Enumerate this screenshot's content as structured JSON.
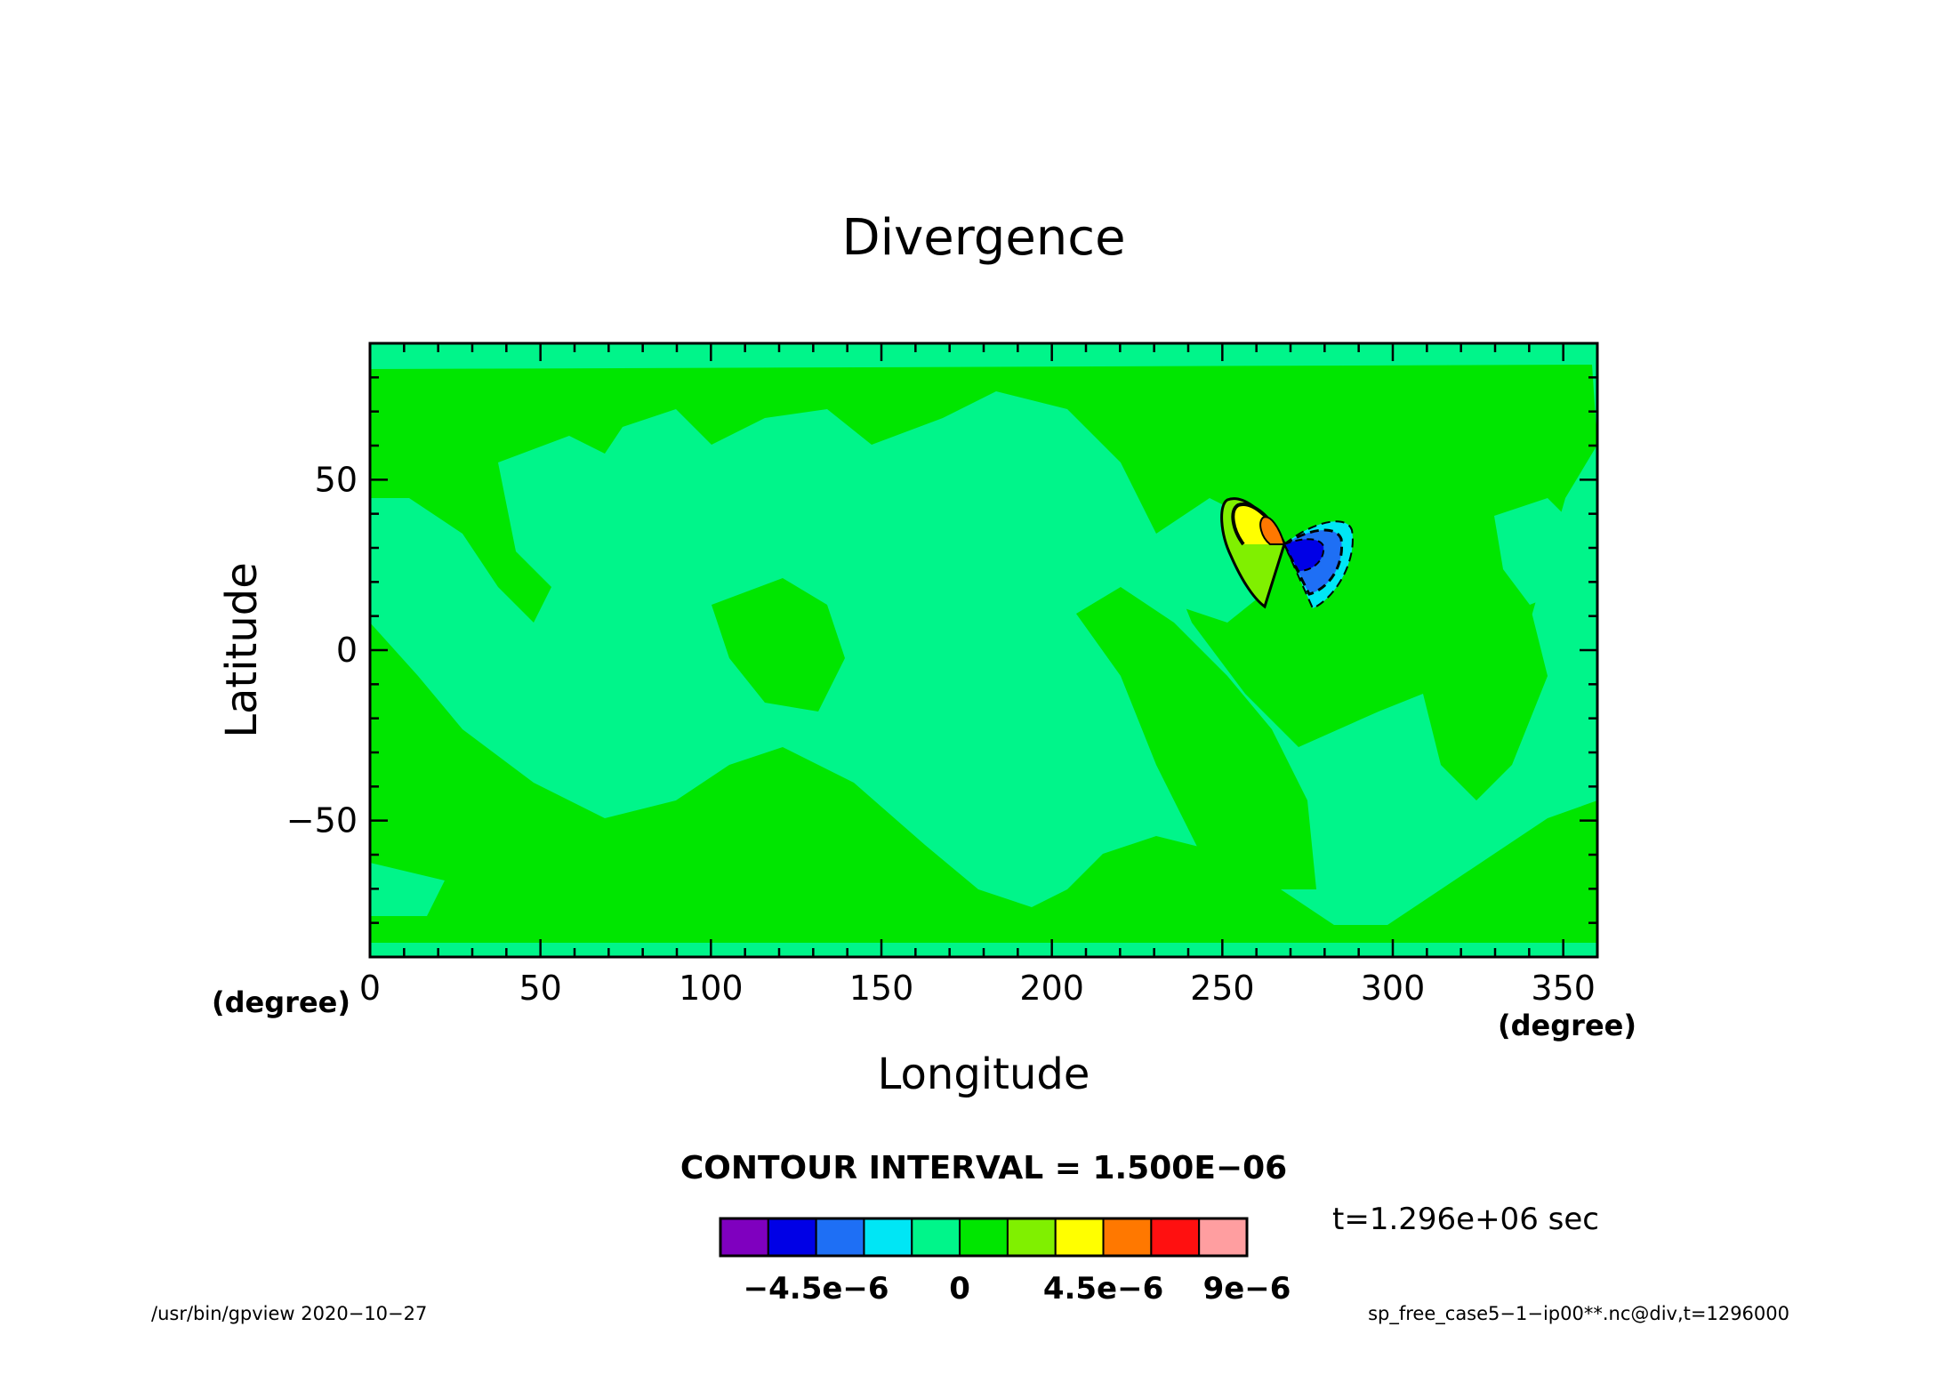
{
  "chart_data": {
    "type": "heatmap",
    "title": "Divergence",
    "xlabel": "Longitude",
    "ylabel": "Latitude",
    "x_unit": "(degree)",
    "y_unit": "(degree)",
    "xlim": [
      0,
      360
    ],
    "ylim": [
      -90,
      90
    ],
    "x_ticks": [
      0,
      50,
      100,
      150,
      200,
      250,
      300,
      350
    ],
    "y_ticks": [
      -50,
      0,
      50
    ],
    "contour_interval_label": "CONTOUR INTERVAL = 1.500E−06",
    "contour_interval": 1.5e-06,
    "time_label": "t=1.296e+06 sec",
    "colorbar": {
      "colors": [
        "#7f00bf",
        "#0000e6",
        "#1e6ff5",
        "#00e6f5",
        "#00f58a",
        "#00e600",
        "#80f000",
        "#ffff00",
        "#ff7800",
        "#ff1010",
        "#ff9ea0"
      ],
      "tick_labels": [
        "−4.5e−6",
        "0",
        "4.5e−6",
        "9e−6"
      ],
      "tick_values": [
        -4.5e-06,
        0,
        4.5e-06,
        9e-06
      ]
    },
    "features": [
      {
        "name": "positive anomaly peak",
        "lon": 262,
        "lat": 35,
        "level": 6e-06
      },
      {
        "name": "negative anomaly trough",
        "lon": 280,
        "lat": 25,
        "level": -4.5e-06
      }
    ]
  },
  "footer": {
    "program": "/usr/bin/gpview  2020−10−27",
    "source": "sp_free_case5−1−ip00**.nc@div,t=1296000"
  }
}
